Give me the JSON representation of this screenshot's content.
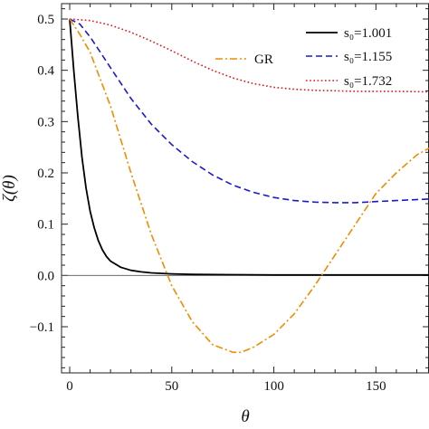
{
  "chart_data": {
    "type": "line",
    "xlabel": "θ",
    "ylabel": "ζ(θ)",
    "xlim": [
      -4,
      176
    ],
    "ylim": [
      -0.19,
      0.53
    ],
    "xticks": [
      0,
      50,
      100,
      150
    ],
    "xtick_labels": [
      "0",
      "50",
      "100",
      "150"
    ],
    "yticks": [
      -0.1,
      0,
      0.1,
      0.2,
      0.3,
      0.4,
      0.5
    ],
    "ytick_labels": [
      "−0.1",
      "0.0",
      "0.1",
      "0.2",
      "0.3",
      "0.4",
      "0.5"
    ],
    "zero_line": true,
    "grid": false,
    "legend_position": "top-right",
    "series": [
      {
        "name": "s₀=1.001",
        "color": "#000000",
        "style": "solid",
        "x": [
          0,
          2,
          4,
          6,
          8,
          10,
          12,
          14,
          16,
          18,
          20,
          25,
          30,
          35,
          40,
          50,
          60,
          80,
          100,
          120,
          150,
          176
        ],
        "y": [
          0.5,
          0.4,
          0.31,
          0.23,
          0.17,
          0.125,
          0.093,
          0.068,
          0.05,
          0.037,
          0.028,
          0.016,
          0.01,
          0.007,
          0.005,
          0.003,
          0.002,
          0.0015,
          0.001,
          0.001,
          0.001,
          0.001
        ]
      },
      {
        "name": "s₀=1.155",
        "color": "#1a1acc",
        "style": "dashed",
        "x": [
          0,
          5,
          10,
          15,
          20,
          25,
          30,
          40,
          50,
          60,
          70,
          80,
          90,
          100,
          110,
          120,
          130,
          140,
          150,
          160,
          176
        ],
        "y": [
          0.5,
          0.49,
          0.465,
          0.435,
          0.405,
          0.375,
          0.345,
          0.295,
          0.255,
          0.222,
          0.196,
          0.176,
          0.162,
          0.152,
          0.146,
          0.143,
          0.142,
          0.142,
          0.144,
          0.146,
          0.149
        ]
      },
      {
        "name": "s₀=1.732",
        "color": "#e0141e",
        "style": "dotted",
        "x": [
          0,
          10,
          20,
          30,
          40,
          50,
          60,
          70,
          80,
          90,
          100,
          110,
          120,
          130,
          140,
          150,
          160,
          176
        ],
        "y": [
          0.5,
          0.497,
          0.488,
          0.474,
          0.457,
          0.438,
          0.418,
          0.4,
          0.385,
          0.374,
          0.367,
          0.363,
          0.361,
          0.36,
          0.359,
          0.359,
          0.359,
          0.358
        ]
      },
      {
        "name": "GR",
        "color": "#f08c00",
        "style": "dashdot",
        "x": [
          0,
          5,
          10,
          20,
          30,
          40,
          50,
          60,
          70,
          80,
          84,
          90,
          100,
          110,
          120,
          130,
          140,
          150,
          160,
          170,
          176
        ],
        "y": [
          0.5,
          0.47,
          0.435,
          0.33,
          0.2,
          0.08,
          -0.02,
          -0.09,
          -0.135,
          -0.15,
          -0.15,
          -0.14,
          -0.115,
          -0.075,
          -0.02,
          0.04,
          0.1,
          0.16,
          0.2,
          0.235,
          0.248
        ]
      }
    ]
  }
}
